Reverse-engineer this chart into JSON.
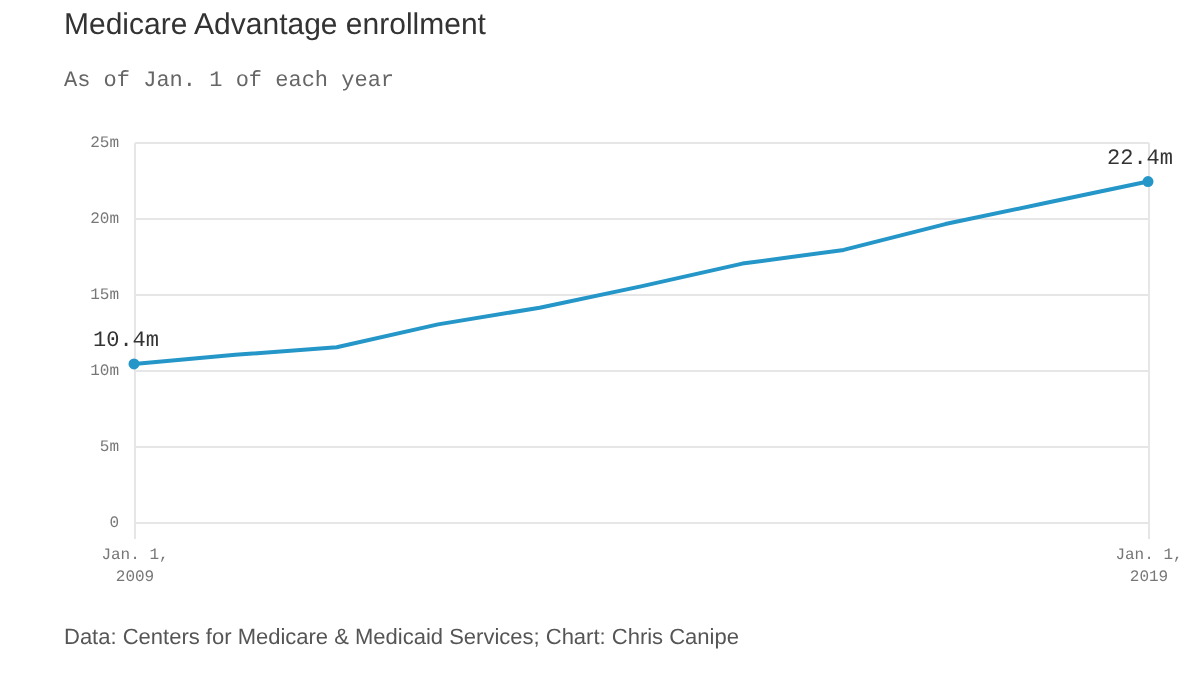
{
  "chart_data": {
    "type": "line",
    "title": "Medicare Advantage enrollment",
    "subtitle": "As of Jan. 1 of each year",
    "x": [
      "2009-01-01",
      "2010-01-01",
      "2011-01-01",
      "2012-01-01",
      "2013-01-01",
      "2014-01-01",
      "2015-01-01",
      "2016-01-01",
      "2017-01-01",
      "2018-01-01",
      "2019-01-01"
    ],
    "series": [
      {
        "color": "#2596c8",
        "values": [
          10.4,
          11.0,
          11.5,
          13.0,
          14.1,
          15.5,
          17.0,
          17.9,
          19.6,
          21.0,
          22.4
        ],
        "value_labels": [
          "10.4m",
          null,
          null,
          null,
          null,
          null,
          null,
          null,
          null,
          null,
          "22.4m"
        ]
      }
    ],
    "xlim": [
      "2009-01-01",
      "2019-01-01"
    ],
    "xticks": [
      {
        "value": "2009-01-01",
        "label": "Jan. 1, 2009"
      },
      {
        "value": "2019-01-01",
        "label": "Jan. 1, 2019"
      }
    ],
    "ylim": [
      0,
      25
    ],
    "yticks": [
      0,
      {
        "value": 5,
        "label": "5m"
      },
      {
        "value": 10,
        "label": "10m"
      },
      {
        "value": 15,
        "label": "15m"
      },
      {
        "value": 20,
        "label": "20m"
      },
      {
        "value": 25,
        "label": "25m"
      }
    ],
    "grid": true,
    "annotations": [
      "Data: Centers for Medicare & Medicaid Services; Chart: Chris Canipe"
    ]
  }
}
